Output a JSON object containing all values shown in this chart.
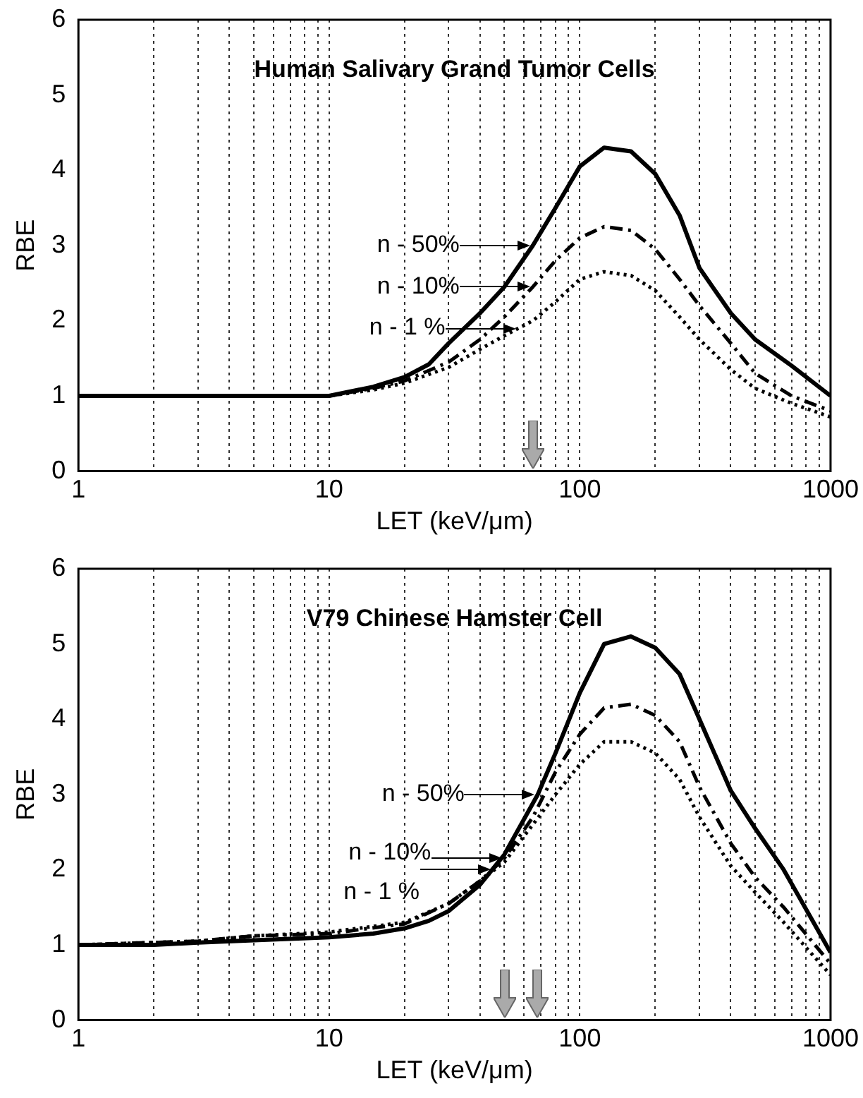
{
  "chart_data": [
    {
      "type": "line",
      "title": "Human Salivary Grand Tumor Cells",
      "xlabel": "LET (keV/μm)",
      "ylabel": "RBE",
      "log": "x",
      "grid": "x",
      "marker": "none",
      "xlim": [
        1,
        1000
      ],
      "xticks": [
        1,
        {
          "value": 2,
          "label": null
        },
        {
          "value": 3,
          "label": null
        },
        {
          "value": 4,
          "label": null
        },
        {
          "value": 5,
          "label": null
        },
        {
          "value": 6,
          "label": null
        },
        {
          "value": 7,
          "label": null
        },
        {
          "value": 8,
          "label": null
        },
        {
          "value": 9,
          "label": null
        },
        10,
        {
          "value": 20,
          "label": null
        },
        {
          "value": 30,
          "label": null
        },
        {
          "value": 40,
          "label": null
        },
        {
          "value": 50,
          "label": null
        },
        {
          "value": 60,
          "label": null
        },
        {
          "value": 70,
          "label": null
        },
        {
          "value": 80,
          "label": null
        },
        {
          "value": 90,
          "label": null
        },
        100,
        {
          "value": 200,
          "label": null
        },
        {
          "value": 300,
          "label": null
        },
        {
          "value": 400,
          "label": null
        },
        {
          "value": 500,
          "label": null
        },
        {
          "value": 600,
          "label": null
        },
        {
          "value": 700,
          "label": null
        },
        {
          "value": 800,
          "label": null
        },
        {
          "value": 900,
          "label": null
        },
        1000
      ],
      "ylim": [
        0,
        6
      ],
      "yticks": [
        0,
        1,
        2,
        3,
        4,
        5,
        6
      ],
      "series": [
        {
          "color": "#000000",
          "line_style": "solid",
          "x": [
            1,
            10,
            15,
            20,
            25,
            30,
            40,
            50,
            65,
            80,
            100,
            125,
            160,
            200,
            250,
            300,
            400,
            500,
            700,
            1000
          ],
          "values": [
            1,
            1,
            1.12,
            1.25,
            1.42,
            1.7,
            2.1,
            2.45,
            3.0,
            3.5,
            4.05,
            4.3,
            4.25,
            3.95,
            3.4,
            2.7,
            2.1,
            1.75,
            1.4,
            1.0
          ]
        },
        {
          "color": "#000000",
          "line_style": "dashed",
          "x": [
            1,
            10,
            15,
            20,
            30,
            40,
            50,
            65,
            80,
            100,
            125,
            160,
            200,
            250,
            300,
            400,
            500,
            700,
            1000
          ],
          "values": [
            1,
            1,
            1.1,
            1.2,
            1.45,
            1.75,
            2.05,
            2.45,
            2.8,
            3.1,
            3.25,
            3.2,
            2.95,
            2.55,
            2.2,
            1.7,
            1.3,
            1.0,
            0.8
          ]
        },
        {
          "color": "#000000",
          "line_style": "dotted",
          "x": [
            1,
            10,
            15,
            20,
            30,
            40,
            50,
            65,
            80,
            100,
            125,
            160,
            200,
            250,
            300,
            400,
            500,
            700,
            1000
          ],
          "values": [
            1,
            1,
            1.08,
            1.17,
            1.38,
            1.62,
            1.8,
            2.0,
            2.25,
            2.55,
            2.65,
            2.6,
            2.4,
            2.05,
            1.75,
            1.35,
            1.1,
            0.9,
            0.72
          ]
        }
      ],
      "annotations": [
        "n - 50%",
        "n - 10%",
        "n - 1 %"
      ]
    },
    {
      "type": "line",
      "title": "V79 Chinese Hamster Cell",
      "xlabel": "LET (keV/μm)",
      "ylabel": "RBE",
      "log": "x",
      "grid": "x",
      "marker": "none",
      "xlim": [
        1,
        1000
      ],
      "xticks": [
        1,
        {
          "value": 2,
          "label": null
        },
        {
          "value": 3,
          "label": null
        },
        {
          "value": 4,
          "label": null
        },
        {
          "value": 5,
          "label": null
        },
        {
          "value": 6,
          "label": null
        },
        {
          "value": 7,
          "label": null
        },
        {
          "value": 8,
          "label": null
        },
        {
          "value": 9,
          "label": null
        },
        10,
        {
          "value": 20,
          "label": null
        },
        {
          "value": 30,
          "label": null
        },
        {
          "value": 40,
          "label": null
        },
        {
          "value": 50,
          "label": null
        },
        {
          "value": 60,
          "label": null
        },
        {
          "value": 70,
          "label": null
        },
        {
          "value": 80,
          "label": null
        },
        {
          "value": 90,
          "label": null
        },
        100,
        {
          "value": 200,
          "label": null
        },
        {
          "value": 300,
          "label": null
        },
        {
          "value": 400,
          "label": null
        },
        {
          "value": 500,
          "label": null
        },
        {
          "value": 600,
          "label": null
        },
        {
          "value": 700,
          "label": null
        },
        {
          "value": 800,
          "label": null
        },
        {
          "value": 900,
          "label": null
        },
        1000
      ],
      "ylim": [
        0,
        6
      ],
      "yticks": [
        0,
        1,
        2,
        3,
        4,
        5,
        6
      ],
      "series": [
        {
          "color": "#000000",
          "line_style": "solid",
          "x": [
            1,
            2,
            3,
            5,
            10,
            15,
            20,
            25,
            30,
            40,
            50,
            68,
            80,
            100,
            125,
            160,
            200,
            250,
            300,
            400,
            500,
            650,
            1000
          ],
          "values": [
            1,
            1.0,
            1.03,
            1.06,
            1.1,
            1.15,
            1.22,
            1.32,
            1.45,
            1.8,
            2.2,
            3.0,
            3.55,
            4.35,
            5.0,
            5.1,
            4.95,
            4.6,
            4.0,
            3.05,
            2.55,
            2.0,
            0.9
          ]
        },
        {
          "color": "#000000",
          "line_style": "dashed",
          "x": [
            1,
            3,
            5,
            10,
            20,
            30,
            40,
            50,
            65,
            80,
            100,
            125,
            160,
            200,
            250,
            300,
            400,
            500,
            650,
            1000
          ],
          "values": [
            1,
            1.05,
            1.12,
            1.15,
            1.28,
            1.55,
            1.85,
            2.15,
            2.7,
            3.3,
            3.8,
            4.15,
            4.2,
            4.05,
            3.7,
            3.1,
            2.35,
            1.9,
            1.5,
            0.75
          ]
        },
        {
          "color": "#000000",
          "line_style": "dotted",
          "x": [
            1,
            3,
            5,
            10,
            20,
            30,
            40,
            50,
            65,
            80,
            100,
            125,
            160,
            200,
            250,
            300,
            400,
            500,
            650,
            1000
          ],
          "values": [
            1,
            1.05,
            1.12,
            1.17,
            1.3,
            1.55,
            1.85,
            2.1,
            2.6,
            3.0,
            3.4,
            3.7,
            3.7,
            3.55,
            3.2,
            2.7,
            2.05,
            1.7,
            1.3,
            0.6
          ]
        }
      ],
      "annotations": [
        "n - 50%",
        "n - 10%",
        "n - 1 %"
      ]
    }
  ]
}
